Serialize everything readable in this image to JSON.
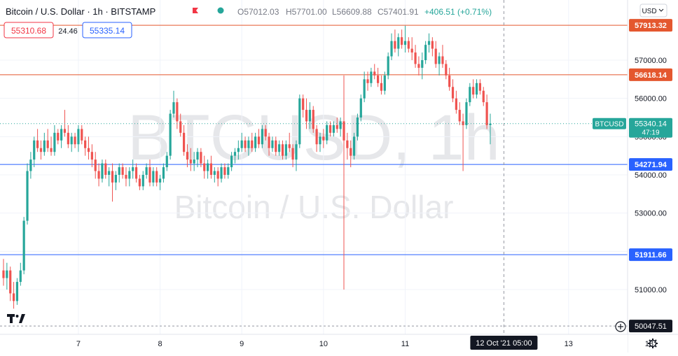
{
  "header": {
    "symbol_title": "Bitcoin / U.S. Dollar · 1h · BITSTAMP",
    "open": "O57012.03",
    "high": "H57701.00",
    "low": "L56609.88",
    "close": "C57401.91",
    "change": "+406.51 (+0.71%)",
    "currency": "USD",
    "sell_price": "55310.68",
    "spread": "24.46",
    "buy_price": "55335.14"
  },
  "watermark": {
    "line1": "BTCUSD, 1h",
    "line2": "Bitcoin / U.S. Dollar"
  },
  "colors": {
    "up": "#26a69a",
    "down": "#ef5350",
    "resistance": "#e4572e",
    "support": "#2962ff",
    "label_text": "#ffffff",
    "watermark": "#e6e7ea"
  },
  "chart_data": {
    "type": "candlestick",
    "title": "",
    "xlabel": "",
    "ylabel": "",
    "ylim": [
      49950,
      58750
    ],
    "price_ticks": [
      51000,
      52000,
      53000,
      54000,
      55000,
      56000,
      57000
    ],
    "price_tick_labels": [
      "51000.00",
      "52000.00",
      "53000.00",
      "54000.00",
      "55000.00",
      "56000.00",
      "57000.00"
    ],
    "time_ticks": [
      {
        "label": "7",
        "hour": 22
      },
      {
        "label": "8",
        "hour": 46
      },
      {
        "label": "9",
        "hour": 70
      },
      {
        "label": "10",
        "hour": 94
      },
      {
        "label": "11",
        "hour": 118
      },
      {
        "label": "13",
        "hour": 166
      },
      {
        "label": "18:",
        "hour": 190
      }
    ],
    "crosshair": {
      "label": "12 Oct '21   05:00",
      "hour": 147,
      "price": 55340
    },
    "horizontal_lines": [
      {
        "name": "resistance-1",
        "price": 57913.32,
        "label": "57913.32",
        "kind": "resistance"
      },
      {
        "name": "resistance-2",
        "price": 56618.14,
        "label": "56618.14",
        "kind": "resistance"
      },
      {
        "name": "support-1",
        "price": 54271.94,
        "label": "54271.94",
        "kind": "support"
      },
      {
        "name": "support-2",
        "price": 51911.66,
        "label": "51911.66",
        "kind": "support"
      },
      {
        "name": "bottom-level",
        "price": 50047.51,
        "label": "50047.51",
        "kind": "neutral"
      }
    ],
    "last_price": {
      "price": 55340.14,
      "label": "55340.14",
      "countdown": "47:19",
      "symbol": "BTCUSD"
    },
    "candles": [
      {
        "o": 51500,
        "h": 51800,
        "l": 51100,
        "c": 51300
      },
      {
        "o": 51300,
        "h": 51700,
        "l": 51000,
        "c": 51500
      },
      {
        "o": 51500,
        "h": 51600,
        "l": 50700,
        "c": 50900
      },
      {
        "o": 50900,
        "h": 51200,
        "l": 50500,
        "c": 50700
      },
      {
        "o": 50700,
        "h": 51300,
        "l": 50600,
        "c": 51200
      },
      {
        "o": 51200,
        "h": 51700,
        "l": 51100,
        "c": 51500
      },
      {
        "o": 51500,
        "h": 52900,
        "l": 51400,
        "c": 52800
      },
      {
        "o": 52800,
        "h": 54300,
        "l": 52700,
        "c": 54100
      },
      {
        "o": 54100,
        "h": 54600,
        "l": 53900,
        "c": 54400
      },
      {
        "o": 54400,
        "h": 55000,
        "l": 54200,
        "c": 54900
      },
      {
        "o": 54900,
        "h": 55200,
        "l": 54600,
        "c": 54700
      },
      {
        "o": 54700,
        "h": 54900,
        "l": 54400,
        "c": 54600
      },
      {
        "o": 54600,
        "h": 55100,
        "l": 54500,
        "c": 54900
      },
      {
        "o": 54900,
        "h": 55200,
        "l": 54600,
        "c": 54700
      },
      {
        "o": 54700,
        "h": 55000,
        "l": 54500,
        "c": 54600
      },
      {
        "o": 54600,
        "h": 55300,
        "l": 54500,
        "c": 55100
      },
      {
        "o": 55100,
        "h": 55200,
        "l": 54800,
        "c": 54900
      },
      {
        "o": 54900,
        "h": 55300,
        "l": 54700,
        "c": 55200
      },
      {
        "o": 55200,
        "h": 55700,
        "l": 55000,
        "c": 55100
      },
      {
        "o": 55100,
        "h": 55300,
        "l": 54700,
        "c": 54800
      },
      {
        "o": 54800,
        "h": 55100,
        "l": 54600,
        "c": 55000
      },
      {
        "o": 55000,
        "h": 55100,
        "l": 54700,
        "c": 54800
      },
      {
        "o": 54800,
        "h": 55300,
        "l": 54600,
        "c": 55200
      },
      {
        "o": 55200,
        "h": 55300,
        "l": 54800,
        "c": 54900
      },
      {
        "o": 54900,
        "h": 55000,
        "l": 54500,
        "c": 54700
      },
      {
        "o": 54700,
        "h": 55000,
        "l": 54400,
        "c": 54600
      },
      {
        "o": 54600,
        "h": 54800,
        "l": 54200,
        "c": 54400
      },
      {
        "o": 54400,
        "h": 54600,
        "l": 53900,
        "c": 54100
      },
      {
        "o": 54100,
        "h": 54300,
        "l": 53700,
        "c": 53900
      },
      {
        "o": 53900,
        "h": 54400,
        "l": 53800,
        "c": 54300
      },
      {
        "o": 54300,
        "h": 54400,
        "l": 53900,
        "c": 54000
      },
      {
        "o": 54000,
        "h": 54200,
        "l": 53700,
        "c": 54100
      },
      {
        "o": 54100,
        "h": 54300,
        "l": 53300,
        "c": 53800
      },
      {
        "o": 53800,
        "h": 54100,
        "l": 53600,
        "c": 54000
      },
      {
        "o": 54000,
        "h": 54300,
        "l": 53800,
        "c": 54200
      },
      {
        "o": 54200,
        "h": 54300,
        "l": 53900,
        "c": 54000
      },
      {
        "o": 54000,
        "h": 54200,
        "l": 53700,
        "c": 53900
      },
      {
        "o": 53900,
        "h": 54200,
        "l": 53700,
        "c": 54100
      },
      {
        "o": 54100,
        "h": 54400,
        "l": 53900,
        "c": 54200
      },
      {
        "o": 54200,
        "h": 54300,
        "l": 53800,
        "c": 53900
      },
      {
        "o": 53900,
        "h": 54000,
        "l": 53600,
        "c": 53700
      },
      {
        "o": 53700,
        "h": 54100,
        "l": 53600,
        "c": 54000
      },
      {
        "o": 54000,
        "h": 54300,
        "l": 53900,
        "c": 54200
      },
      {
        "o": 54200,
        "h": 54400,
        "l": 53700,
        "c": 53800
      },
      {
        "o": 53800,
        "h": 54200,
        "l": 53700,
        "c": 54100
      },
      {
        "o": 54100,
        "h": 54200,
        "l": 53700,
        "c": 53800
      },
      {
        "o": 53800,
        "h": 54000,
        "l": 53600,
        "c": 53900
      },
      {
        "o": 53900,
        "h": 54300,
        "l": 53800,
        "c": 54200
      },
      {
        "o": 54200,
        "h": 54600,
        "l": 54100,
        "c": 54500
      },
      {
        "o": 54500,
        "h": 55700,
        "l": 54400,
        "c": 55600
      },
      {
        "o": 55600,
        "h": 56200,
        "l": 55500,
        "c": 55900
      },
      {
        "o": 55900,
        "h": 56000,
        "l": 55200,
        "c": 55400
      },
      {
        "o": 55400,
        "h": 55600,
        "l": 55000,
        "c": 55100
      },
      {
        "o": 55100,
        "h": 55300,
        "l": 54500,
        "c": 54600
      },
      {
        "o": 54600,
        "h": 54800,
        "l": 54200,
        "c": 54400
      },
      {
        "o": 54400,
        "h": 54700,
        "l": 54100,
        "c": 54300
      },
      {
        "o": 54300,
        "h": 54600,
        "l": 54100,
        "c": 54400
      },
      {
        "o": 54400,
        "h": 54700,
        "l": 54200,
        "c": 54600
      },
      {
        "o": 54600,
        "h": 54700,
        "l": 54200,
        "c": 54300
      },
      {
        "o": 54300,
        "h": 54500,
        "l": 53900,
        "c": 54100
      },
      {
        "o": 54100,
        "h": 54400,
        "l": 53900,
        "c": 54300
      },
      {
        "o": 54300,
        "h": 54500,
        "l": 53900,
        "c": 54000
      },
      {
        "o": 54000,
        "h": 54200,
        "l": 53800,
        "c": 54100
      },
      {
        "o": 54100,
        "h": 54200,
        "l": 53700,
        "c": 53900
      },
      {
        "o": 53900,
        "h": 54300,
        "l": 53800,
        "c": 54200
      },
      {
        "o": 54200,
        "h": 54300,
        "l": 53900,
        "c": 54000
      },
      {
        "o": 54000,
        "h": 54300,
        "l": 53900,
        "c": 54200
      },
      {
        "o": 54200,
        "h": 54600,
        "l": 54100,
        "c": 54500
      },
      {
        "o": 54500,
        "h": 54700,
        "l": 54300,
        "c": 54600
      },
      {
        "o": 54600,
        "h": 54900,
        "l": 54400,
        "c": 54700
      },
      {
        "o": 54700,
        "h": 55100,
        "l": 54600,
        "c": 54900
      },
      {
        "o": 54900,
        "h": 55000,
        "l": 54600,
        "c": 54700
      },
      {
        "o": 54700,
        "h": 55000,
        "l": 54500,
        "c": 54900
      },
      {
        "o": 54900,
        "h": 55100,
        "l": 54600,
        "c": 54700
      },
      {
        "o": 54700,
        "h": 55100,
        "l": 54600,
        "c": 55000
      },
      {
        "o": 55000,
        "h": 55200,
        "l": 54700,
        "c": 54800
      },
      {
        "o": 54800,
        "h": 55300,
        "l": 54700,
        "c": 55200
      },
      {
        "o": 55200,
        "h": 55300,
        "l": 54900,
        "c": 55000
      },
      {
        "o": 55000,
        "h": 55100,
        "l": 54500,
        "c": 54700
      },
      {
        "o": 54700,
        "h": 55000,
        "l": 54600,
        "c": 54900
      },
      {
        "o": 54900,
        "h": 55000,
        "l": 54500,
        "c": 54600
      },
      {
        "o": 54600,
        "h": 54900,
        "l": 54500,
        "c": 54800
      },
      {
        "o": 54800,
        "h": 54900,
        "l": 54400,
        "c": 54500
      },
      {
        "o": 54500,
        "h": 54900,
        "l": 54400,
        "c": 54800
      },
      {
        "o": 54800,
        "h": 55100,
        "l": 54600,
        "c": 54700
      },
      {
        "o": 54700,
        "h": 54800,
        "l": 54200,
        "c": 54400
      },
      {
        "o": 54400,
        "h": 54900,
        "l": 54100,
        "c": 54800
      },
      {
        "o": 54800,
        "h": 56100,
        "l": 54700,
        "c": 56000
      },
      {
        "o": 56000,
        "h": 56100,
        "l": 55500,
        "c": 55700
      },
      {
        "o": 55700,
        "h": 56000,
        "l": 55200,
        "c": 55400
      },
      {
        "o": 55400,
        "h": 55900,
        "l": 55200,
        "c": 55700
      },
      {
        "o": 55700,
        "h": 55800,
        "l": 55100,
        "c": 55200
      },
      {
        "o": 55200,
        "h": 55300,
        "l": 54600,
        "c": 54800
      },
      {
        "o": 54800,
        "h": 55100,
        "l": 54600,
        "c": 55000
      },
      {
        "o": 55000,
        "h": 55200,
        "l": 54700,
        "c": 54900
      },
      {
        "o": 54900,
        "h": 55400,
        "l": 54800,
        "c": 55300
      },
      {
        "o": 55300,
        "h": 55400,
        "l": 55000,
        "c": 55100
      },
      {
        "o": 55100,
        "h": 55400,
        "l": 55000,
        "c": 55300
      },
      {
        "o": 55300,
        "h": 55500,
        "l": 55100,
        "c": 55200
      },
      {
        "o": 55200,
        "h": 55500,
        "l": 55000,
        "c": 55400
      },
      {
        "o": 55400,
        "h": 56600,
        "l": 51000,
        "c": 54900
      },
      {
        "o": 54900,
        "h": 55100,
        "l": 54400,
        "c": 54700
      },
      {
        "o": 54700,
        "h": 54900,
        "l": 54200,
        "c": 54500
      },
      {
        "o": 54500,
        "h": 55100,
        "l": 54400,
        "c": 55000
      },
      {
        "o": 55000,
        "h": 55600,
        "l": 54900,
        "c": 55500
      },
      {
        "o": 55500,
        "h": 56100,
        "l": 55400,
        "c": 56000
      },
      {
        "o": 56000,
        "h": 56700,
        "l": 55900,
        "c": 56500
      },
      {
        "o": 56500,
        "h": 56700,
        "l": 56200,
        "c": 56400
      },
      {
        "o": 56400,
        "h": 56800,
        "l": 56300,
        "c": 56700
      },
      {
        "o": 56700,
        "h": 56900,
        "l": 56500,
        "c": 56600
      },
      {
        "o": 56600,
        "h": 56800,
        "l": 56300,
        "c": 56400
      },
      {
        "o": 56400,
        "h": 56600,
        "l": 56100,
        "c": 56200
      },
      {
        "o": 56200,
        "h": 56700,
        "l": 56100,
        "c": 56600
      },
      {
        "o": 56600,
        "h": 57200,
        "l": 56500,
        "c": 57100
      },
      {
        "o": 57100,
        "h": 57700,
        "l": 57000,
        "c": 57500
      },
      {
        "o": 57500,
        "h": 57800,
        "l": 57200,
        "c": 57300
      },
      {
        "o": 57300,
        "h": 57700,
        "l": 57100,
        "c": 57600
      },
      {
        "o": 57600,
        "h": 57800,
        "l": 57300,
        "c": 57400
      },
      {
        "o": 57400,
        "h": 57900,
        "l": 57200,
        "c": 57500
      },
      {
        "o": 57500,
        "h": 57600,
        "l": 57200,
        "c": 57300
      },
      {
        "o": 57300,
        "h": 57600,
        "l": 57000,
        "c": 57200
      },
      {
        "o": 57200,
        "h": 57400,
        "l": 56800,
        "c": 56900
      },
      {
        "o": 56900,
        "h": 57100,
        "l": 56600,
        "c": 56800
      },
      {
        "o": 56800,
        "h": 57200,
        "l": 56500,
        "c": 57000
      },
      {
        "o": 57000,
        "h": 57500,
        "l": 56900,
        "c": 57400
      },
      {
        "o": 57400,
        "h": 57700,
        "l": 57200,
        "c": 57500
      },
      {
        "o": 57500,
        "h": 57600,
        "l": 57100,
        "c": 57300
      },
      {
        "o": 57300,
        "h": 57500,
        "l": 56800,
        "c": 56900
      },
      {
        "o": 56900,
        "h": 57200,
        "l": 56600,
        "c": 57100
      },
      {
        "o": 57100,
        "h": 57400,
        "l": 56800,
        "c": 56900
      },
      {
        "o": 56900,
        "h": 57000,
        "l": 56500,
        "c": 56600
      },
      {
        "o": 56600,
        "h": 56800,
        "l": 56200,
        "c": 56300
      },
      {
        "o": 56300,
        "h": 56500,
        "l": 55900,
        "c": 56000
      },
      {
        "o": 56000,
        "h": 56200,
        "l": 55600,
        "c": 55700
      },
      {
        "o": 55700,
        "h": 55900,
        "l": 55300,
        "c": 55400
      },
      {
        "o": 55400,
        "h": 55600,
        "l": 54100,
        "c": 55300
      },
      {
        "o": 55300,
        "h": 56000,
        "l": 55200,
        "c": 55900
      },
      {
        "o": 55900,
        "h": 56400,
        "l": 55800,
        "c": 56300
      },
      {
        "o": 56300,
        "h": 56500,
        "l": 56000,
        "c": 56100
      },
      {
        "o": 56100,
        "h": 56500,
        "l": 56000,
        "c": 56400
      },
      {
        "o": 56400,
        "h": 56500,
        "l": 56100,
        "c": 56200
      },
      {
        "o": 56200,
        "h": 56300,
        "l": 55800,
        "c": 55900
      },
      {
        "o": 55900,
        "h": 56100,
        "l": 55200,
        "c": 55300
      },
      {
        "o": 55300,
        "h": 55600,
        "l": 54800,
        "c": 55340
      }
    ]
  }
}
